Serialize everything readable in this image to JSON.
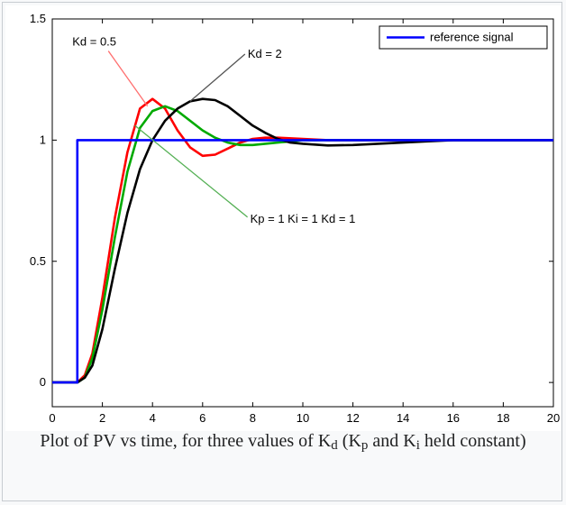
{
  "chart_data": {
    "type": "line",
    "title": "",
    "xlabel": "",
    "ylabel": "",
    "xlim": [
      0,
      20
    ],
    "ylim": [
      -0.1,
      1.5
    ],
    "x_ticks": [
      "0",
      "2",
      "4",
      "6",
      "8",
      "10",
      "12",
      "14",
      "16",
      "18",
      "20"
    ],
    "y_ticks": [
      "0",
      "0.5",
      "1",
      "1.5"
    ],
    "grid": false,
    "legend": {
      "position": "top-right",
      "entries": [
        "reference signal"
      ]
    },
    "series": [
      {
        "name": "reference signal",
        "color": "#0000ff",
        "points": [
          [
            0,
            0
          ],
          [
            1,
            0
          ],
          [
            1,
            1
          ],
          [
            20,
            1
          ]
        ]
      },
      {
        "name": "",
        "color": "#ff0000",
        "points": [
          [
            0,
            0
          ],
          [
            1,
            0
          ],
          [
            1.3,
            0.03
          ],
          [
            1.6,
            0.12
          ],
          [
            2,
            0.35
          ],
          [
            2.5,
            0.68
          ],
          [
            3,
            0.95
          ],
          [
            3.5,
            1.13
          ],
          [
            4,
            1.17
          ],
          [
            4.5,
            1.13
          ],
          [
            5,
            1.04
          ],
          [
            5.5,
            0.97
          ],
          [
            6,
            0.935
          ],
          [
            6.5,
            0.94
          ],
          [
            7,
            0.965
          ],
          [
            7.5,
            0.99
          ],
          [
            8,
            1.005
          ],
          [
            8.5,
            1.01
          ],
          [
            9,
            1.01
          ],
          [
            10,
            1.005
          ],
          [
            11,
            1.0
          ],
          [
            12,
            1.0
          ],
          [
            16,
            1.0
          ],
          [
            20,
            1.0
          ]
        ]
      },
      {
        "name": "",
        "color": "#00aa00",
        "points": [
          [
            0,
            0
          ],
          [
            1,
            0
          ],
          [
            1.3,
            0.02
          ],
          [
            1.6,
            0.1
          ],
          [
            2,
            0.3
          ],
          [
            2.5,
            0.6
          ],
          [
            3,
            0.87
          ],
          [
            3.5,
            1.05
          ],
          [
            4,
            1.12
          ],
          [
            4.5,
            1.14
          ],
          [
            5,
            1.12
          ],
          [
            5.5,
            1.08
          ],
          [
            6,
            1.04
          ],
          [
            6.5,
            1.01
          ],
          [
            7,
            0.99
          ],
          [
            7.5,
            0.98
          ],
          [
            8,
            0.98
          ],
          [
            9,
            0.99
          ],
          [
            10,
            1.0
          ],
          [
            12,
            1.0
          ],
          [
            16,
            1.0
          ],
          [
            20,
            1.0
          ]
        ]
      },
      {
        "name": "",
        "color": "#000000",
        "points": [
          [
            0,
            0
          ],
          [
            1,
            0
          ],
          [
            1.3,
            0.02
          ],
          [
            1.6,
            0.07
          ],
          [
            2,
            0.22
          ],
          [
            2.5,
            0.47
          ],
          [
            3,
            0.7
          ],
          [
            3.5,
            0.88
          ],
          [
            4,
            1.0
          ],
          [
            4.5,
            1.08
          ],
          [
            5,
            1.13
          ],
          [
            5.5,
            1.16
          ],
          [
            6,
            1.17
          ],
          [
            6.5,
            1.165
          ],
          [
            7,
            1.14
          ],
          [
            7.5,
            1.1
          ],
          [
            8,
            1.06
          ],
          [
            8.5,
            1.03
          ],
          [
            9,
            1.005
          ],
          [
            9.5,
            0.99
          ],
          [
            10,
            0.985
          ],
          [
            11,
            0.978
          ],
          [
            12,
            0.98
          ],
          [
            13,
            0.985
          ],
          [
            14,
            0.99
          ],
          [
            15,
            0.995
          ],
          [
            16,
            1.0
          ],
          [
            20,
            1.0
          ]
        ]
      }
    ],
    "annotations": [
      {
        "text": "Kd = 0.5",
        "label_xy": [
          0.8,
          1.39
        ],
        "arrow_to": [
          3.8,
          1.14
        ]
      },
      {
        "text": "Kd = 2",
        "label_xy": [
          7.8,
          1.34
        ],
        "arrow_to": [
          5.5,
          1.16
        ]
      },
      {
        "text": "Kp = 1  Ki = 1  Kd = 1",
        "label_xy": [
          7.9,
          0.66
        ],
        "arrow_to": [
          3.3,
          1.06
        ]
      }
    ]
  },
  "caption": {
    "prefix": "Plot of PV vs time, for three values of K",
    "sub_d": "d",
    "mid1": " (K",
    "sub_p": "p",
    "mid2": " and K",
    "sub_i": "i",
    "suffix": " held constant)"
  }
}
